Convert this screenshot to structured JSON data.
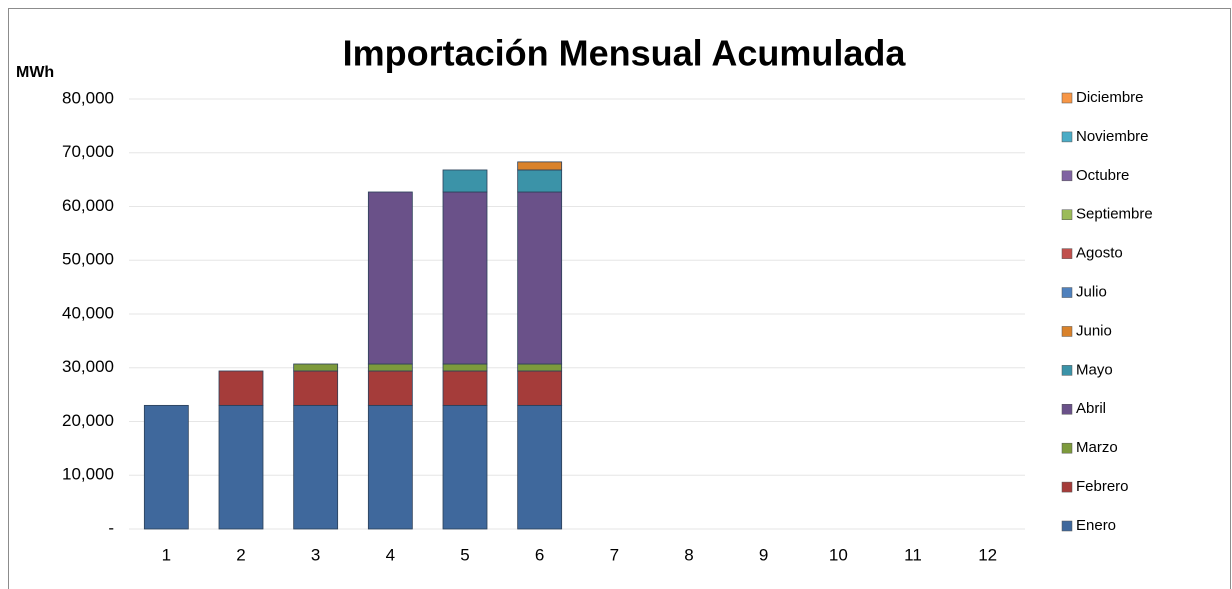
{
  "chart_data": {
    "type": "stacked_bar",
    "title": "Importación Mensual Acumulada",
    "y_label": "MWh",
    "categories": [
      "1",
      "2",
      "3",
      "4",
      "5",
      "6",
      "7",
      "8",
      "9",
      "10",
      "11",
      "12"
    ],
    "series": [
      {
        "name": "Enero",
        "color": "#3f689c",
        "values": [
          23000,
          23000,
          23000,
          23000,
          23000,
          23000,
          null,
          null,
          null,
          null,
          null,
          null
        ]
      },
      {
        "name": "Febrero",
        "color": "#a53c3a",
        "values": [
          null,
          6400,
          6400,
          6400,
          6400,
          6400,
          null,
          null,
          null,
          null,
          null,
          null
        ]
      },
      {
        "name": "Marzo",
        "color": "#7d9a3c",
        "values": [
          null,
          null,
          1300,
          1300,
          1300,
          1300,
          null,
          null,
          null,
          null,
          null,
          null
        ]
      },
      {
        "name": "Abril",
        "color": "#6a5189",
        "values": [
          null,
          null,
          null,
          32000,
          32000,
          32000,
          null,
          null,
          null,
          null,
          null,
          null
        ]
      },
      {
        "name": "Mayo",
        "color": "#3b93a8",
        "values": [
          null,
          null,
          null,
          null,
          4100,
          4100,
          null,
          null,
          null,
          null,
          null,
          null
        ]
      },
      {
        "name": "Junio",
        "color": "#d9822b",
        "values": [
          null,
          null,
          null,
          null,
          null,
          1500,
          null,
          null,
          null,
          null,
          null,
          null
        ]
      },
      {
        "name": "Julio",
        "color": "#4f81bd",
        "values": [
          null,
          null,
          null,
          null,
          null,
          null,
          null,
          null,
          null,
          null,
          null,
          null
        ]
      },
      {
        "name": "Agosto",
        "color": "#c0504d",
        "values": [
          null,
          null,
          null,
          null,
          null,
          null,
          null,
          null,
          null,
          null,
          null,
          null
        ]
      },
      {
        "name": "Septiembre",
        "color": "#9bbb59",
        "values": [
          null,
          null,
          null,
          null,
          null,
          null,
          null,
          null,
          null,
          null,
          null,
          null
        ]
      },
      {
        "name": "Octubre",
        "color": "#8064a2",
        "values": [
          null,
          null,
          null,
          null,
          null,
          null,
          null,
          null,
          null,
          null,
          null,
          null
        ]
      },
      {
        "name": "Noviembre",
        "color": "#4bacc6",
        "values": [
          null,
          null,
          null,
          null,
          null,
          null,
          null,
          null,
          null,
          null,
          null,
          null
        ]
      },
      {
        "name": "Diciembre",
        "color": "#f79646",
        "values": [
          null,
          null,
          null,
          null,
          null,
          null,
          null,
          null,
          null,
          null,
          null,
          null
        ]
      }
    ],
    "ylim": [
      0,
      80000
    ],
    "yticks": [
      {
        "value": 0,
        "label": "-"
      },
      {
        "value": 10000,
        "label": "10,000"
      },
      {
        "value": 20000,
        "label": "20,000"
      },
      {
        "value": 30000,
        "label": "30,000"
      },
      {
        "value": 40000,
        "label": "40,000"
      },
      {
        "value": 50000,
        "label": "50,000"
      },
      {
        "value": 60000,
        "label": "60,000"
      },
      {
        "value": 70000,
        "label": "70,000"
      },
      {
        "value": 80000,
        "label": "80,000"
      }
    ],
    "grid": true,
    "legend": "right"
  }
}
